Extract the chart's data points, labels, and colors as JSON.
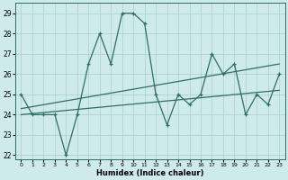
{
  "x": [
    0,
    1,
    2,
    3,
    4,
    5,
    6,
    7,
    8,
    9,
    10,
    11,
    12,
    13,
    14,
    15,
    16,
    17,
    18,
    19,
    20,
    21,
    22,
    23
  ],
  "y": [
    25,
    24,
    24,
    24,
    22,
    24,
    26.5,
    28,
    26.5,
    29,
    29,
    28.5,
    25,
    23.5,
    25,
    24.5,
    25,
    27,
    26,
    26.5,
    24,
    25,
    24.5,
    26
  ],
  "xlabel": "Humidex (Indice chaleur)",
  "bg_color": "#ceeaea",
  "line_color": "#2e6e65",
  "grid_color": "#aacece",
  "xlim": [
    -0.5,
    23.5
  ],
  "ylim": [
    21.8,
    29.5
  ],
  "yticks": [
    22,
    23,
    24,
    25,
    26,
    27,
    28,
    29
  ],
  "xticks": [
    0,
    1,
    2,
    3,
    4,
    5,
    6,
    7,
    8,
    9,
    10,
    11,
    12,
    13,
    14,
    15,
    16,
    17,
    18,
    19,
    20,
    21,
    22,
    23
  ],
  "trend1_x": [
    0,
    23
  ],
  "trend1_y": [
    24.0,
    25.2
  ],
  "trend2_x": [
    0,
    23
  ],
  "trend2_y": [
    24.3,
    26.5
  ]
}
